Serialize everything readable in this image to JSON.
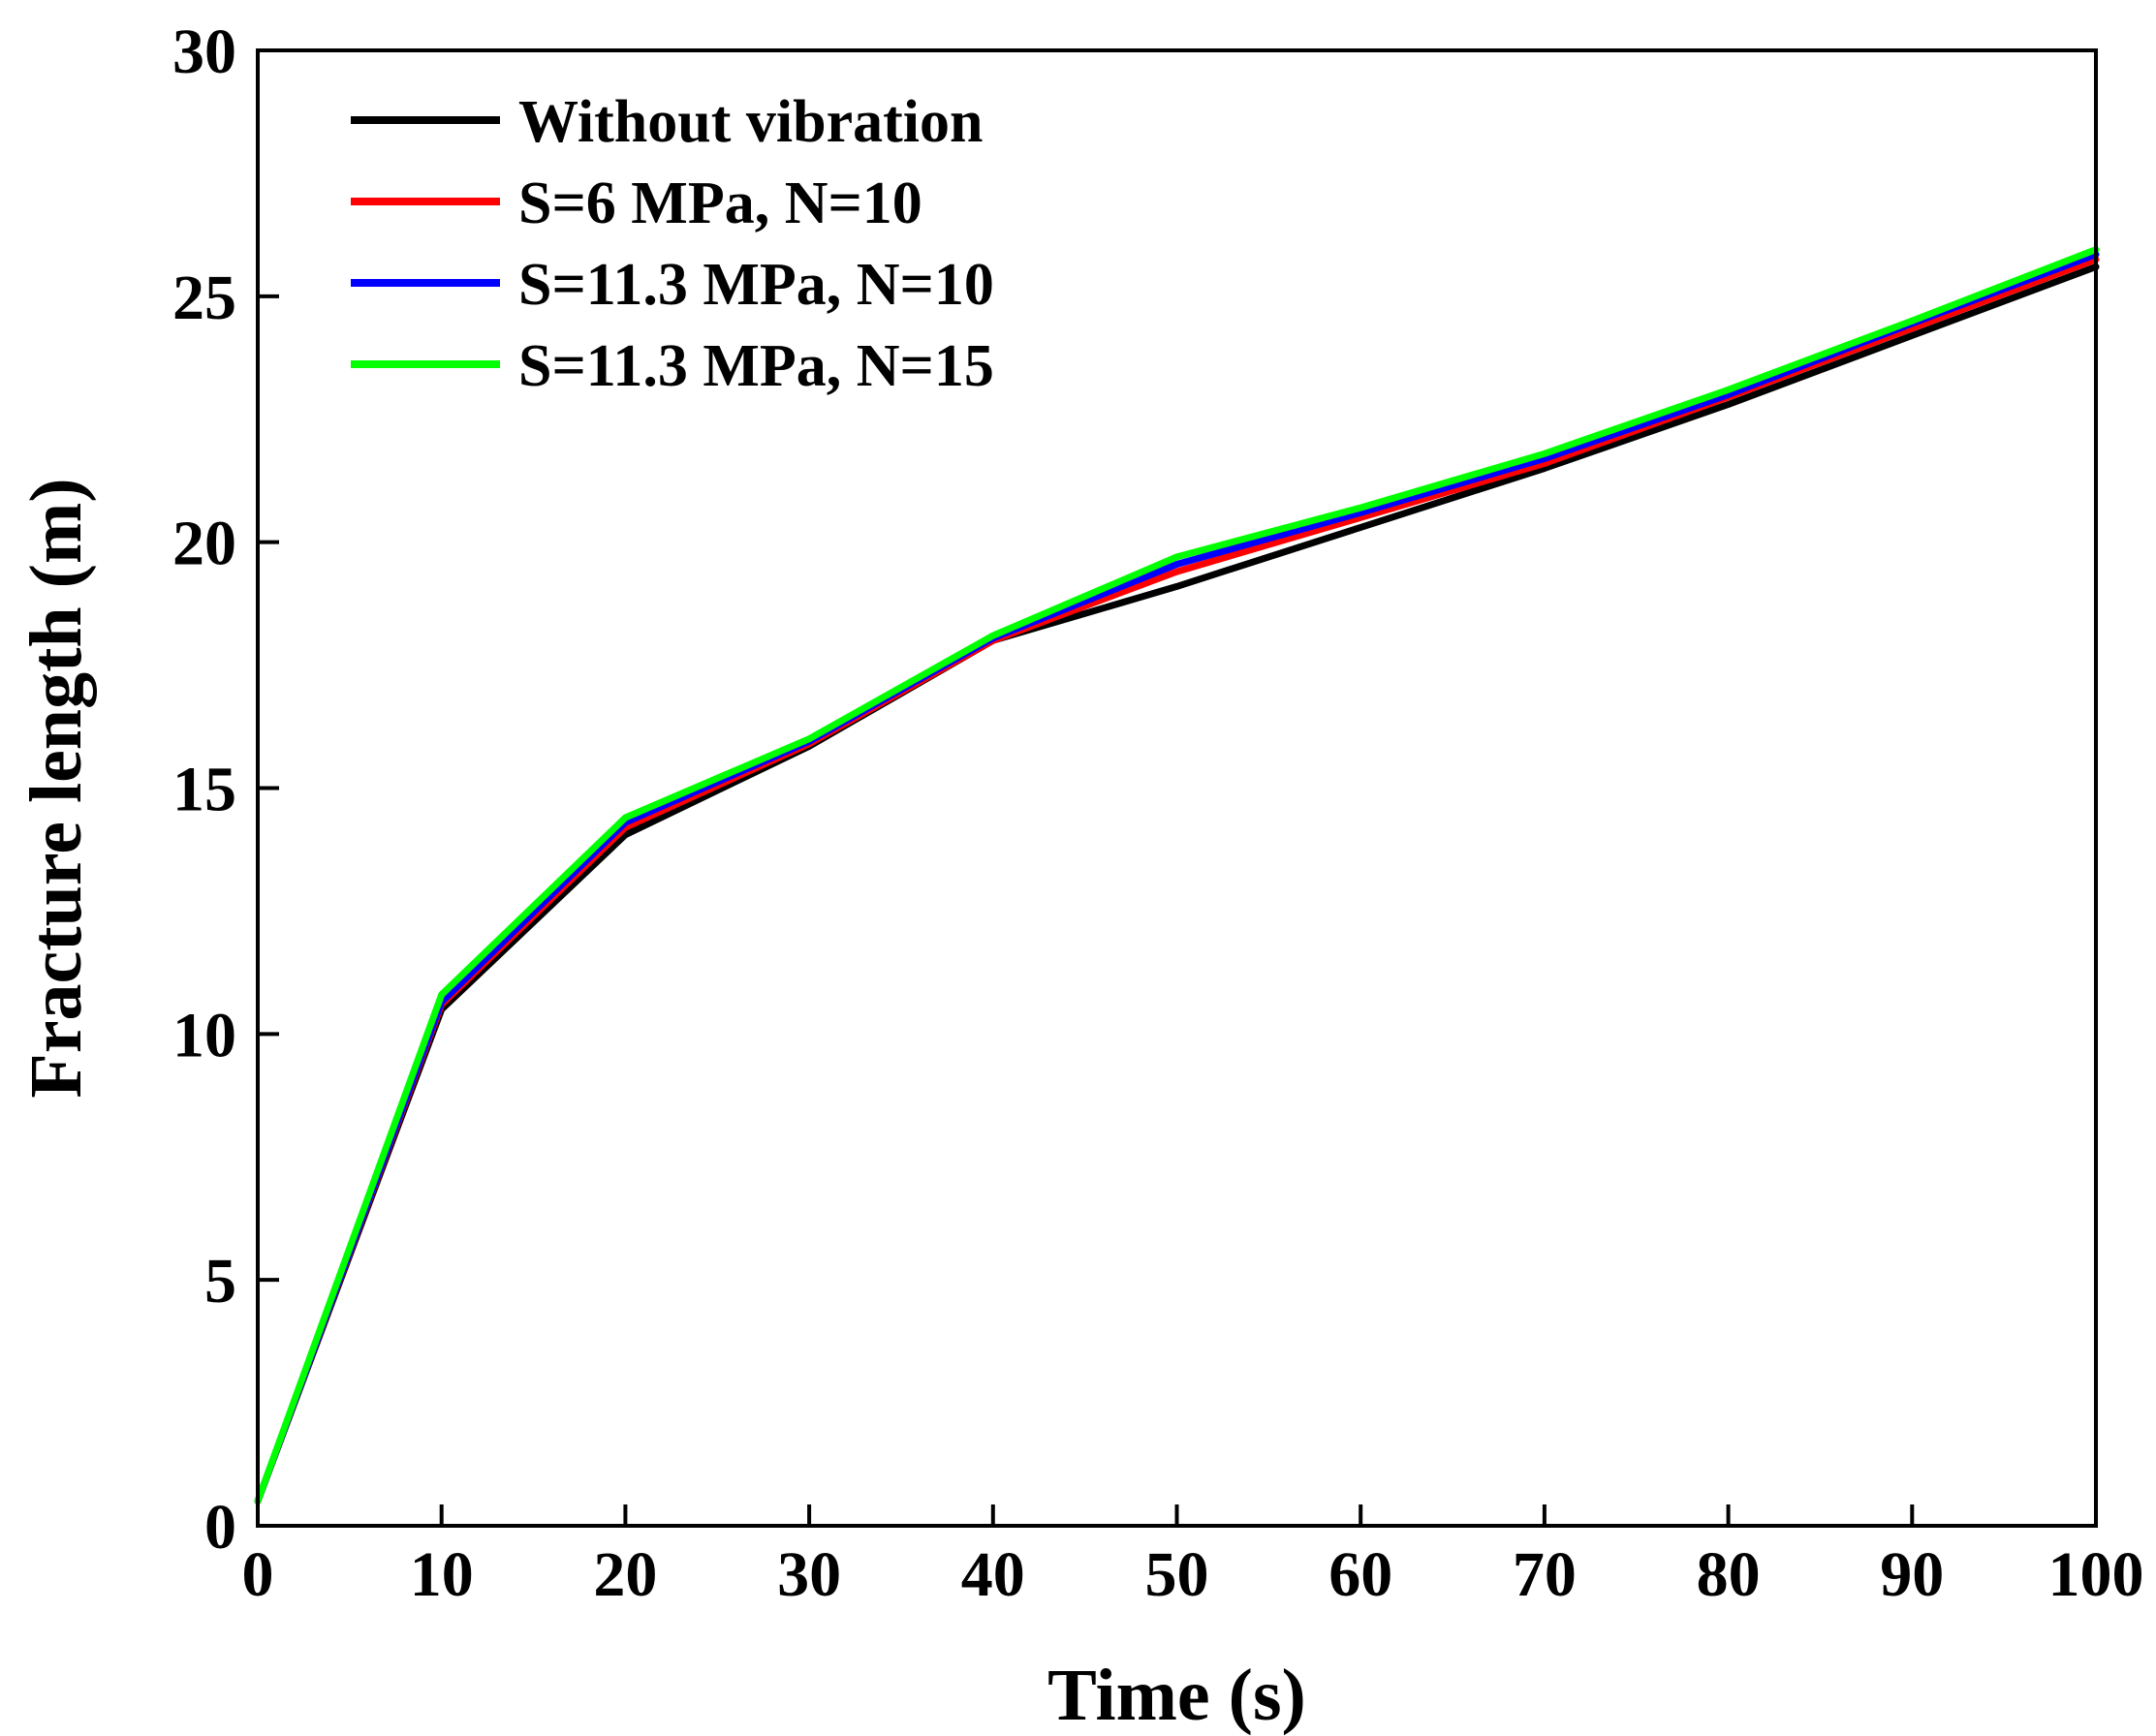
{
  "chart_data": {
    "type": "line",
    "title": "",
    "xlabel": "Time (s)",
    "ylabel": "Fracture length (m)",
    "xlim": [
      0,
      100
    ],
    "ylim": [
      0,
      30
    ],
    "xticks": [
      0,
      10,
      20,
      30,
      40,
      50,
      60,
      70,
      80,
      90,
      100
    ],
    "yticks": [
      0,
      5,
      10,
      15,
      20,
      25,
      30
    ],
    "x": [
      0,
      10,
      20,
      30,
      40,
      50,
      60,
      70,
      80,
      90,
      100
    ],
    "legend_position": "top-left",
    "grid": false,
    "series": [
      {
        "name": "Without vibration",
        "color": "#000000",
        "values": [
          0.5,
          10.5,
          14.05,
          15.85,
          18.0,
          19.1,
          20.3,
          21.5,
          22.8,
          24.2,
          25.6
        ]
      },
      {
        "name": "S=6 MPa, N=10",
        "color": "#ff0000",
        "values": [
          0.5,
          10.6,
          14.2,
          15.9,
          18.0,
          19.4,
          20.5,
          21.6,
          22.95,
          24.35,
          25.75
        ]
      },
      {
        "name": "S=11.3 MPa, N=10",
        "color": "#0000ff",
        "values": [
          0.5,
          10.65,
          14.3,
          15.95,
          18.05,
          19.55,
          20.6,
          21.7,
          23.0,
          24.45,
          25.85
        ]
      },
      {
        "name": "S=11.3 MPa, N=15",
        "color": "#00ff00",
        "values": [
          0.5,
          10.8,
          14.4,
          16.0,
          18.1,
          19.7,
          20.7,
          21.8,
          23.1,
          24.5,
          25.95
        ]
      }
    ]
  }
}
